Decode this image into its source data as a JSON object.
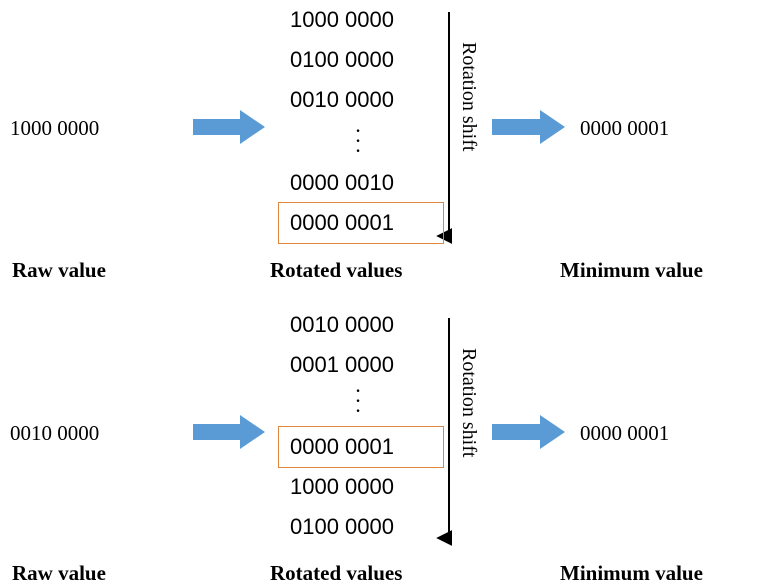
{
  "colors": {
    "arrow_fill": "#5b9bd5",
    "highlight_border": "#e0863e",
    "text": "#000000"
  },
  "panels": [
    {
      "raw_value": "1000 0000",
      "rotated_values": [
        "1000 0000",
        "0100 0000",
        "0010 0000",
        "0000 0010",
        "0000 0001"
      ],
      "highlighted": "0000 0001",
      "rotation_label": "Rotation shift",
      "minimum_value": "0000 0001",
      "labels": {
        "raw": "Raw value",
        "rotated": "Rotated values",
        "minimum": "Minimum value"
      }
    },
    {
      "raw_value": "0010 0000",
      "rotated_values": [
        "0010 0000",
        "0001 0000",
        "0000 0001",
        "1000 0000",
        "0100 0000"
      ],
      "highlighted": "0000 0001",
      "rotation_label": "Rotation shift",
      "minimum_value": "0000 0001",
      "labels": {
        "raw": "Raw value",
        "rotated": "Rotated values",
        "minimum": "Minimum value"
      }
    }
  ]
}
